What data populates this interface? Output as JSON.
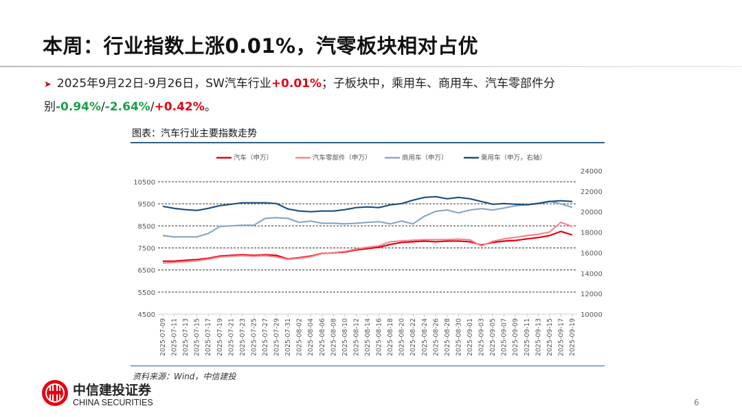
{
  "title": "本周：行业指数上涨0.01%，汽零板块相对占优",
  "bullet": {
    "prefix": "2025年9月22日-9月26日，SW汽车行业",
    "auto_change": "+0.01%",
    "mid": "；子板块中，乘用车、商用车、汽车零部件分别",
    "pv_change": "-0.94%",
    "sep1": "/",
    "cv_change": "-2.64%",
    "sep2": "/",
    "parts_change": "+0.42%",
    "suffix": "。"
  },
  "caption": "图表：汽车行业主要指数走势",
  "source": "资料来源：Wind，中信建投",
  "page_number": "6",
  "logo": {
    "cn": "中信建投证券",
    "en": "CHINA SECURITIES",
    "color": "#e60012"
  },
  "chart_data": {
    "type": "line",
    "title": "",
    "legend_position": "top",
    "grid": "dashed horizontal",
    "y_left": {
      "lim": [
        4500,
        10500
      ],
      "ticks": [
        4500,
        5500,
        6500,
        7500,
        8500,
        9500,
        10500
      ]
    },
    "y_right": {
      "lim": [
        10000,
        24000
      ],
      "ticks": [
        10000,
        12000,
        14000,
        16000,
        18000,
        20000,
        22000,
        24000
      ]
    },
    "x": [
      "2025-07-09",
      "2025-07-11",
      "2025-07-13",
      "2025-07-15",
      "2025-07-17",
      "2025-07-19",
      "2025-07-21",
      "2025-07-23",
      "2025-07-25",
      "2025-07-27",
      "2025-07-29",
      "2025-07-31",
      "2025-08-02",
      "2025-08-04",
      "2025-08-06",
      "2025-08-08",
      "2025-08-10",
      "2025-08-12",
      "2025-08-14",
      "2025-08-16",
      "2025-08-18",
      "2025-08-20",
      "2025-08-22",
      "2025-08-24",
      "2025-08-26",
      "2025-08-28",
      "2025-08-30",
      "2025-09-01",
      "2025-09-03",
      "2025-09-05",
      "2025-09-07",
      "2025-09-09",
      "2025-09-11",
      "2025-09-13",
      "2025-09-15",
      "2025-09-17",
      "2025-09-19"
    ],
    "series": [
      {
        "name": "汽车（申万）",
        "axis": "left",
        "color": "#e60012",
        "values": [
          6900,
          6900,
          6940,
          6970,
          7030,
          7130,
          7160,
          7190,
          7160,
          7190,
          7160,
          7000,
          7060,
          7130,
          7250,
          7280,
          7310,
          7410,
          7470,
          7530,
          7660,
          7750,
          7780,
          7810,
          7780,
          7810,
          7810,
          7780,
          7630,
          7750,
          7810,
          7840,
          7910,
          7970,
          8060,
          8250,
          8090
        ]
      },
      {
        "name": "汽车零部件（申万）",
        "axis": "left",
        "color": "#f4868c",
        "values": [
          6810,
          6840,
          6880,
          6920,
          6990,
          7090,
          7120,
          7150,
          7120,
          7150,
          7090,
          6980,
          7030,
          7100,
          7240,
          7290,
          7340,
          7450,
          7530,
          7600,
          7780,
          7820,
          7850,
          7880,
          7880,
          7880,
          7900,
          7870,
          7590,
          7800,
          7910,
          7980,
          8060,
          8120,
          8220,
          8660,
          8470
        ]
      },
      {
        "name": "商用车（申万）",
        "axis": "left",
        "color": "#88a8c6",
        "values": [
          8060,
          8000,
          8000,
          8000,
          8160,
          8470,
          8500,
          8530,
          8530,
          8840,
          8870,
          8840,
          8660,
          8720,
          8620,
          8620,
          8590,
          8620,
          8660,
          8690,
          8590,
          8720,
          8590,
          8940,
          9160,
          9220,
          9090,
          9220,
          9280,
          9220,
          9310,
          9410,
          9470,
          9530,
          9620,
          9500,
          9340
        ]
      },
      {
        "name": "乘用车（申万，右轴）",
        "axis": "right",
        "color": "#1a4f7e",
        "values": [
          20530,
          20330,
          20200,
          20130,
          20330,
          20600,
          20730,
          20870,
          20870,
          20870,
          20800,
          20270,
          20070,
          20000,
          20070,
          20070,
          20200,
          20400,
          20470,
          20400,
          20670,
          20800,
          21130,
          21400,
          21470,
          21270,
          21400,
          21270,
          21000,
          20730,
          20800,
          20730,
          20670,
          20800,
          21000,
          21070,
          21000
        ]
      }
    ]
  }
}
